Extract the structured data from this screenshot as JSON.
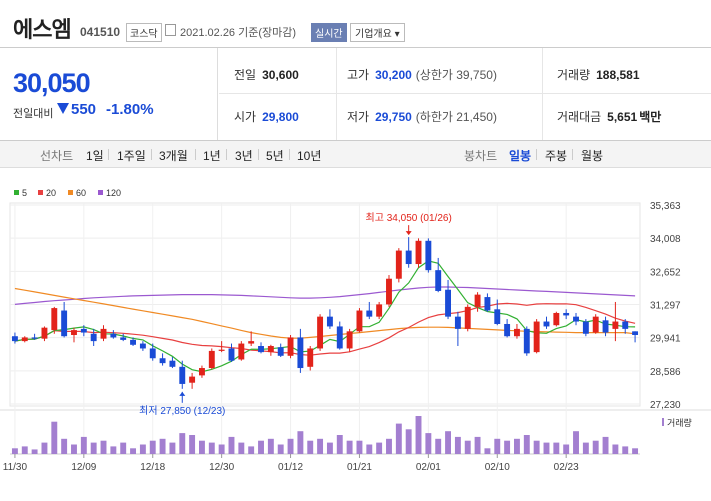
{
  "header": {
    "name": "에스엠",
    "code": "041510",
    "market": "코스닥",
    "date": "2021.02.26 기준(장마감)",
    "realtime": "실시간",
    "company_info": "기업개요"
  },
  "price": {
    "current": "30,050",
    "change_label": "전일대비",
    "change": "550",
    "rate": "-1.80%"
  },
  "info": {
    "prev_close_label": "전일",
    "prev_close": "30,600",
    "high_label": "고가",
    "high": "30,200",
    "upper_limit": "(상한가 39,750)",
    "volume_label": "거래량",
    "volume": "188,581",
    "open_label": "시가",
    "open": "29,800",
    "low_label": "저가",
    "low": "29,750",
    "lower_limit": "(하한가 21,450)",
    "amount_label": "거래대금",
    "amount": "5,651",
    "amount_unit": "백만"
  },
  "toolbar": {
    "line_label": "선차트",
    "periods": [
      "1일",
      "1주일",
      "3개월",
      "1년",
      "3년",
      "5년",
      "10년"
    ],
    "candle_label": "봉차트",
    "candle_types": [
      "일봉",
      "주봉",
      "월봉"
    ],
    "active_candle": "일봉"
  },
  "colors": {
    "up": "#e2231a",
    "down": "#1a4bd6",
    "ma5": "#32b032",
    "ma20": "#e84040",
    "ma60": "#f08a24",
    "ma120": "#9b59d0",
    "volume": "#a37fd0"
  },
  "chart_data": {
    "type": "candlestick",
    "legend": [
      "5",
      "20",
      "60",
      "120"
    ],
    "y_ticks": [
      "35,363",
      "34,008",
      "32,652",
      "31,297",
      "29,941",
      "28,586",
      "27,230"
    ],
    "ylim": [
      27230,
      35363
    ],
    "x_labels": [
      {
        "label": "11/30",
        "index": 0
      },
      {
        "label": "12/09",
        "index": 7
      },
      {
        "label": "12/18",
        "index": 14
      },
      {
        "label": "12/30",
        "index": 21
      },
      {
        "label": "01/12",
        "index": 28
      },
      {
        "label": "01/21",
        "index": 35
      },
      {
        "label": "02/01",
        "index": 42
      },
      {
        "label": "02/10",
        "index": 49
      },
      {
        "label": "02/23",
        "index": 56
      }
    ],
    "annotations": {
      "high": "최고 34,050 (01/26)",
      "low": "최저 27,850 (12/23)",
      "volume_label": "거래량"
    },
    "candles": [
      [
        30000,
        30150,
        29700,
        29800
      ],
      [
        29800,
        30000,
        29750,
        29950
      ],
      [
        29950,
        30100,
        29850,
        29900
      ],
      [
        29900,
        30400,
        29800,
        30350
      ],
      [
        30250,
        31200,
        30100,
        31150
      ],
      [
        31050,
        31400,
        29950,
        30000
      ],
      [
        30050,
        30350,
        29750,
        30250
      ],
      [
        30300,
        30450,
        30000,
        30150
      ],
      [
        30100,
        30300,
        29600,
        29800
      ],
      [
        29900,
        30450,
        29800,
        30300
      ],
      [
        30100,
        30250,
        29900,
        29950
      ],
      [
        29950,
        30100,
        29800,
        29850
      ],
      [
        29850,
        29950,
        29600,
        29650
      ],
      [
        29700,
        29800,
        29400,
        29500
      ],
      [
        29500,
        29700,
        29000,
        29100
      ],
      [
        29100,
        29300,
        28800,
        28900
      ],
      [
        29000,
        29150,
        28700,
        28750
      ],
      [
        28750,
        29000,
        27850,
        28050
      ],
      [
        28100,
        28500,
        27850,
        28350
      ],
      [
        28400,
        28800,
        28300,
        28700
      ],
      [
        28700,
        29500,
        28650,
        29400
      ],
      [
        29400,
        29800,
        29350,
        29450
      ],
      [
        29500,
        29700,
        28950,
        29000
      ],
      [
        29050,
        29800,
        29000,
        29700
      ],
      [
        29700,
        30200,
        29600,
        29800
      ],
      [
        29600,
        29750,
        29300,
        29350
      ],
      [
        29350,
        29650,
        29200,
        29600
      ],
      [
        29550,
        29700,
        29150,
        29200
      ],
      [
        29200,
        30050,
        29100,
        29950
      ],
      [
        29950,
        30300,
        28500,
        28700
      ],
      [
        28750,
        29600,
        28600,
        29500
      ],
      [
        29500,
        30900,
        29400,
        30800
      ],
      [
        30800,
        31100,
        30300,
        30400
      ],
      [
        30400,
        30600,
        29450,
        29500
      ],
      [
        29500,
        30300,
        29350,
        30200
      ],
      [
        30200,
        31150,
        30150,
        31050
      ],
      [
        31050,
        31400,
        30700,
        30800
      ],
      [
        30800,
        31400,
        30700,
        31300
      ],
      [
        31300,
        32500,
        31200,
        32350
      ],
      [
        32350,
        33600,
        32200,
        33500
      ],
      [
        33500,
        34050,
        32800,
        32950
      ],
      [
        32950,
        34000,
        32800,
        33900
      ],
      [
        33900,
        34000,
        32600,
        32700
      ],
      [
        32700,
        33200,
        31800,
        31850
      ],
      [
        31900,
        32300,
        30700,
        30800
      ],
      [
        30800,
        31000,
        29600,
        30300
      ],
      [
        30300,
        31300,
        30200,
        31200
      ],
      [
        31200,
        31800,
        31000,
        31700
      ],
      [
        31600,
        31750,
        31000,
        31050
      ],
      [
        31100,
        31500,
        30450,
        30500
      ],
      [
        30500,
        30700,
        29950,
        30000
      ],
      [
        30000,
        30500,
        29900,
        30300
      ],
      [
        30300,
        30400,
        29200,
        29300
      ],
      [
        29350,
        30700,
        29300,
        30600
      ],
      [
        30600,
        30800,
        30300,
        30400
      ],
      [
        30450,
        31000,
        30400,
        30950
      ],
      [
        30950,
        31100,
        30700,
        30850
      ],
      [
        30800,
        30950,
        30450,
        30600
      ],
      [
        30600,
        30700,
        30000,
        30100
      ],
      [
        30150,
        30900,
        30100,
        30800
      ],
      [
        30650,
        30800,
        30000,
        30150
      ],
      [
        30300,
        31400,
        29800,
        30600
      ],
      [
        30600,
        30700,
        30100,
        30300
      ],
      [
        30200,
        30200,
        29750,
        30050
      ]
    ],
    "volumes": [
      0.15,
      0.2,
      0.12,
      0.3,
      0.85,
      0.4,
      0.25,
      0.45,
      0.3,
      0.35,
      0.2,
      0.3,
      0.15,
      0.25,
      0.35,
      0.4,
      0.3,
      0.55,
      0.5,
      0.35,
      0.3,
      0.25,
      0.45,
      0.3,
      0.2,
      0.35,
      0.4,
      0.25,
      0.4,
      0.6,
      0.35,
      0.4,
      0.3,
      0.5,
      0.35,
      0.35,
      0.25,
      0.3,
      0.4,
      0.8,
      0.65,
      1.0,
      0.55,
      0.4,
      0.6,
      0.45,
      0.35,
      0.45,
      0.15,
      0.4,
      0.35,
      0.4,
      0.5,
      0.35,
      0.3,
      0.3,
      0.25,
      0.6,
      0.3,
      0.35,
      0.45,
      0.25,
      0.2,
      0.15
    ],
    "ma60": [
      31950,
      31880,
      31810,
      31740,
      31670,
      31600,
      31530,
      31460,
      31390,
      31320,
      31250,
      31180,
      31110,
      31040,
      30970,
      30900,
      30830,
      30760,
      30690,
      30600,
      30510,
      30420,
      30330,
      30240,
      30150,
      30080,
      30010,
      29950,
      29920,
      29920,
      29950,
      29990,
      30030,
      30070,
      30110,
      30150,
      30190,
      30230,
      30270,
      30310,
      30340,
      30360,
      30370,
      30370,
      30360,
      30340,
      30320,
      30300,
      30280,
      30260,
      30240,
      30220,
      30200,
      30190,
      30180,
      30170,
      30160,
      30150,
      30150,
      30150,
      30150,
      30150,
      30150,
      30100
    ],
    "ma120": [
      31300,
      31340,
      31380,
      31420,
      31450,
      31480,
      31510,
      31540,
      31570,
      31590,
      31610,
      31630,
      31650,
      31660,
      31670,
      31680,
      31690,
      31700,
      31700,
      31700,
      31700,
      31690,
      31680,
      31670,
      31650,
      31630,
      31610,
      31590,
      31570,
      31560,
      31560,
      31570,
      31590,
      31620,
      31660,
      31700,
      31740,
      31790,
      31840,
      31890,
      31930,
      31970,
      32000,
      32010,
      32010,
      32000,
      31990,
      31970,
      31950,
      31930,
      31910,
      31890,
      31870,
      31850,
      31830,
      31810,
      31790,
      31770,
      31750,
      31730,
      31710,
      31690,
      31670,
      31650
    ]
  }
}
